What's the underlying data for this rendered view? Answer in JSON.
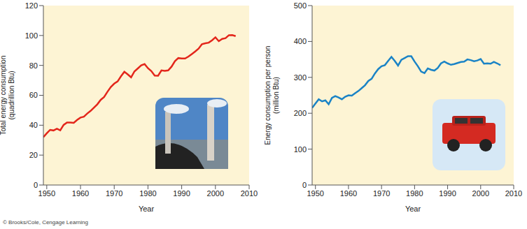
{
  "chart_data": [
    {
      "type": "line",
      "y_label": "Total energy consumption (quadrillion Btu)",
      "x_label": "Year",
      "color": "#e3261b",
      "grid": false,
      "xlim": [
        1949,
        2010
      ],
      "xticks": [
        1950,
        1960,
        1970,
        1980,
        1990,
        2000,
        2010
      ],
      "ylim": [
        0,
        120
      ],
      "yticks": [
        0,
        20,
        40,
        60,
        80,
        100,
        120
      ],
      "x": [
        1949,
        1950,
        1951,
        1952,
        1953,
        1954,
        1955,
        1956,
        1957,
        1958,
        1959,
        1960,
        1961,
        1962,
        1963,
        1964,
        1965,
        1966,
        1967,
        1968,
        1969,
        1970,
        1971,
        1972,
        1973,
        1974,
        1975,
        1976,
        1977,
        1978,
        1979,
        1980,
        1981,
        1982,
        1983,
        1984,
        1985,
        1986,
        1987,
        1988,
        1989,
        1990,
        1991,
        1992,
        1993,
        1994,
        1995,
        1996,
        1997,
        1998,
        1999,
        2000,
        2001,
        2002,
        2003,
        2004,
        2005,
        2006
      ],
      "values": [
        32,
        34.6,
        36.9,
        36.5,
        37.6,
        36.6,
        40.2,
        41.8,
        41.8,
        41.6,
        43.5,
        45.1,
        45.7,
        47.8,
        49.6,
        51.8,
        54,
        57,
        58.9,
        62.4,
        65.6,
        67.8,
        69.3,
        72.7,
        75.7,
        74,
        72,
        76,
        78,
        80,
        80.9,
        78.1,
        76.2,
        73.2,
        73.1,
        76.7,
        76.4,
        76.7,
        79.2,
        82.8,
        84.9,
        84.6,
        84.6,
        85.9,
        87.6,
        89.3,
        91.2,
        94.2,
        94.8,
        95.2,
        96.8,
        98.8,
        96.2,
        97.7,
        98.2,
        100.2,
        100.3,
        99.6
      ]
    },
    {
      "type": "line",
      "y_label": "Energy consumption per person (million Btu)",
      "x_label": "Year",
      "color": "#1a83c6",
      "grid": false,
      "xlim": [
        1949,
        2010
      ],
      "xticks": [
        1950,
        1960,
        1970,
        1980,
        1990,
        2000,
        2010
      ],
      "ylim": [
        0,
        500
      ],
      "yticks": [
        0,
        100,
        200,
        300,
        400,
        500
      ],
      "x": [
        1949,
        1950,
        1951,
        1952,
        1953,
        1954,
        1955,
        1956,
        1957,
        1958,
        1959,
        1960,
        1961,
        1962,
        1963,
        1964,
        1965,
        1966,
        1967,
        1968,
        1969,
        1970,
        1971,
        1972,
        1973,
        1974,
        1975,
        1976,
        1977,
        1978,
        1979,
        1980,
        1981,
        1982,
        1983,
        1984,
        1985,
        1986,
        1987,
        1988,
        1989,
        1990,
        1991,
        1992,
        1993,
        1994,
        1995,
        1996,
        1997,
        1998,
        1999,
        2000,
        2001,
        2002,
        2003,
        2004,
        2005,
        2006
      ],
      "values": [
        215,
        227,
        239,
        233,
        236,
        225,
        243,
        248,
        244,
        239,
        246,
        250,
        249,
        256,
        262,
        270,
        278,
        290,
        296,
        311,
        323,
        331,
        334,
        346,
        357,
        346,
        333,
        349,
        354,
        359,
        359,
        344,
        331,
        316,
        312,
        325,
        321,
        319,
        326,
        339,
        344,
        339,
        335,
        337,
        340,
        343,
        344,
        350,
        348,
        345,
        347,
        351,
        338,
        339,
        338,
        343,
        339,
        334
      ]
    }
  ],
  "credit": "© Brooks/Cole, Cengage Learning"
}
